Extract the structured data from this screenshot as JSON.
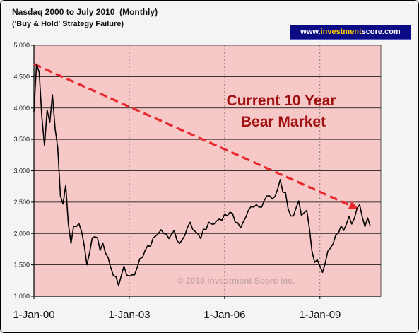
{
  "header": {
    "title": "Nasdaq 2000 to July 2010  (Monthly)",
    "subtitle": "('Buy & Hold' Strategy Failure)",
    "website": {
      "prefix": "www.",
      "accent": "investment",
      "suffix": "score.com"
    }
  },
  "colors": {
    "plot_background": "#f7c8c8",
    "line": "#000000",
    "trend": "#e8282c",
    "annotation": "#a01010",
    "badge_background": "#0b0b86",
    "badge_accent": "#ffcc00"
  },
  "chart_data": {
    "type": "line",
    "x_unit": "month",
    "start": "2000-01",
    "end": "2010-07",
    "xlim": [
      "2000-01",
      "2010-12"
    ],
    "ylim": [
      1000,
      5000
    ],
    "grid": {
      "horizontal": true,
      "vertical": "dotted at x tick labels"
    },
    "x_tick_labels": [
      {
        "label": "1-Jan-00",
        "date": "2000-01"
      },
      {
        "label": "1-Jan-03",
        "date": "2003-01"
      },
      {
        "label": "1-Jan-06",
        "date": "2006-01"
      },
      {
        "label": "1-Jan-09",
        "date": "2009-01"
      }
    ],
    "y_ticks": [
      {
        "value": 1000,
        "label": "1,000"
      },
      {
        "value": 1500,
        "label": "1,500"
      },
      {
        "value": 2000,
        "label": "2,000"
      },
      {
        "value": 2500,
        "label": "2,500"
      },
      {
        "value": 3000,
        "label": "3,000"
      },
      {
        "value": 3500,
        "label": "3,500"
      },
      {
        "value": 4000,
        "label": "4,000"
      },
      {
        "value": 4500,
        "label": "4,500"
      },
      {
        "value": 5000,
        "label": "5,000"
      }
    ],
    "series": [
      {
        "values": [
          3940,
          4700,
          4570,
          3860,
          3400,
          3970,
          3770,
          4210,
          3670,
          3370,
          2600,
          2470,
          2770,
          2150,
          1840,
          2120,
          2110,
          2160,
          2030,
          1810,
          1500,
          1690,
          1930,
          1950,
          1930,
          1730,
          1850,
          1690,
          1620,
          1460,
          1330,
          1310,
          1170,
          1330,
          1480,
          1340,
          1320,
          1340,
          1340,
          1460,
          1600,
          1620,
          1730,
          1810,
          1790,
          1930,
          1960,
          2000,
          2060,
          2000,
          1990,
          1920,
          1990,
          2050,
          1890,
          1840,
          1900,
          1970,
          2100,
          2180,
          2060,
          2030,
          1990,
          1920,
          2070,
          2060,
          2180,
          2150,
          2150,
          2200,
          2230,
          2210,
          2310,
          2280,
          2340,
          2320,
          2180,
          2170,
          2090,
          2180,
          2260,
          2370,
          2430,
          2420,
          2460,
          2420,
          2420,
          2530,
          2600,
          2600,
          2550,
          2590,
          2700,
          2860,
          2660,
          2650,
          2390,
          2280,
          2280,
          2410,
          2520,
          2290,
          2330,
          2370,
          2090,
          1720,
          1540,
          1580,
          1480,
          1380,
          1530,
          1720,
          1770,
          1840,
          1980,
          2010,
          2120,
          2050,
          2150,
          2270,
          2150,
          2240,
          2400,
          2460,
          2260,
          2110,
          2250,
          2120
        ]
      }
    ],
    "trend_line": {
      "from": {
        "date": "2000-01",
        "value": 4700
      },
      "to": {
        "date": "2010-03",
        "value": 2400
      }
    },
    "annotation": [
      "Current 10 Year",
      "Bear Market"
    ],
    "watermark": "© 2010 Investment Score Inc."
  }
}
